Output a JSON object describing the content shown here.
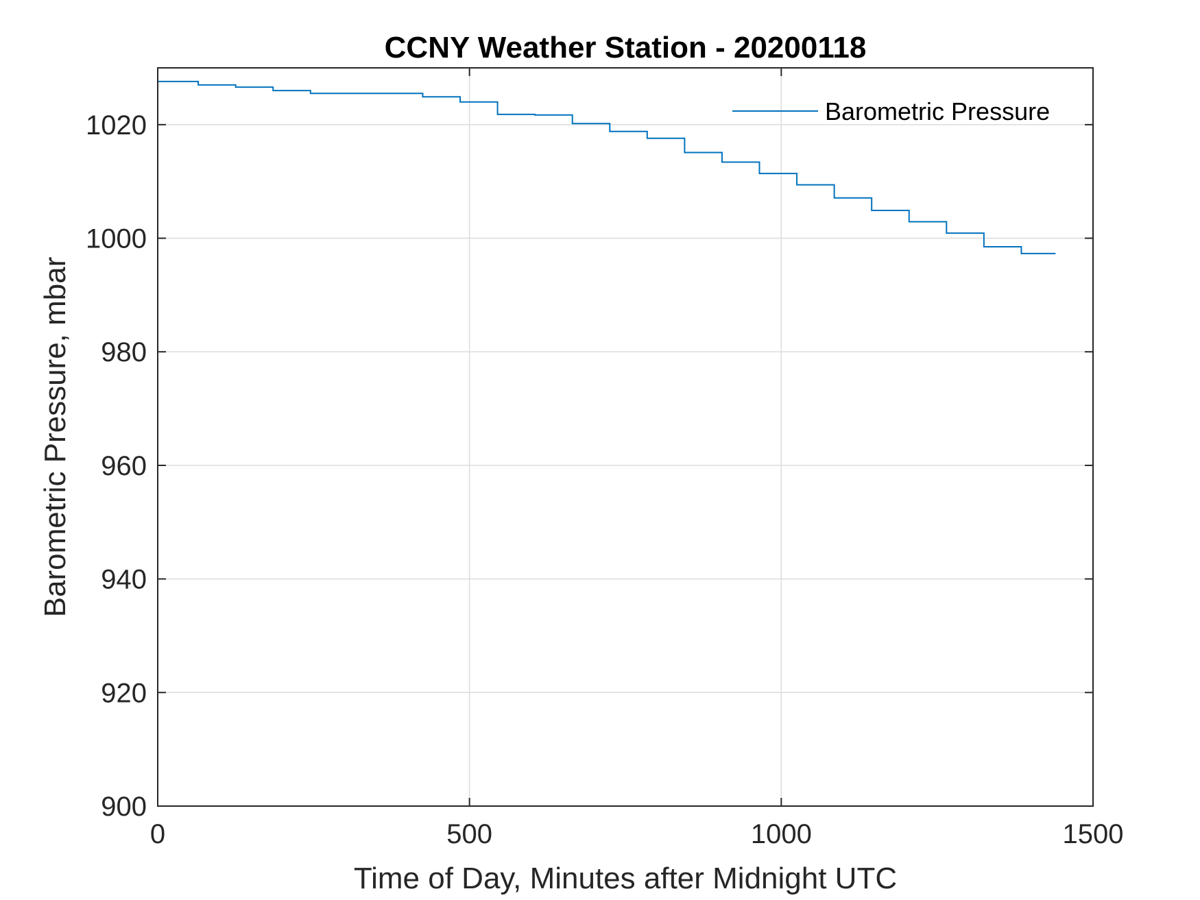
{
  "chart_data": {
    "type": "line",
    "title": "CCNY Weather Station - 20200118",
    "xlabel": "Time of Day, Minutes after Midnight UTC",
    "ylabel": "Barometric Pressure, mbar",
    "xlim": [
      0,
      1500
    ],
    "ylim": [
      900,
      1030
    ],
    "xticks": [
      0,
      500,
      1000,
      1500
    ],
    "yticks": [
      900,
      920,
      940,
      960,
      980,
      1000,
      1020
    ],
    "grid": true,
    "legend_position": "top-right",
    "series": [
      {
        "name": "Barometric Pressure",
        "color": "#0072BD",
        "step": true,
        "x": [
          0,
          65,
          125,
          185,
          245,
          305,
          365,
          425,
          485,
          545,
          605,
          665,
          725,
          785,
          845,
          905,
          965,
          1025,
          1085,
          1145,
          1205,
          1265,
          1325,
          1385,
          1440
        ],
        "y": [
          1027.6,
          1027.0,
          1026.6,
          1026.0,
          1025.5,
          1025.5,
          1025.5,
          1024.9,
          1024.0,
          1021.8,
          1021.7,
          1020.2,
          1018.8,
          1017.6,
          1015.1,
          1013.4,
          1011.4,
          1009.4,
          1007.1,
          1004.9,
          1002.9,
          1000.9,
          998.5,
          997.3,
          997.3
        ]
      }
    ]
  }
}
